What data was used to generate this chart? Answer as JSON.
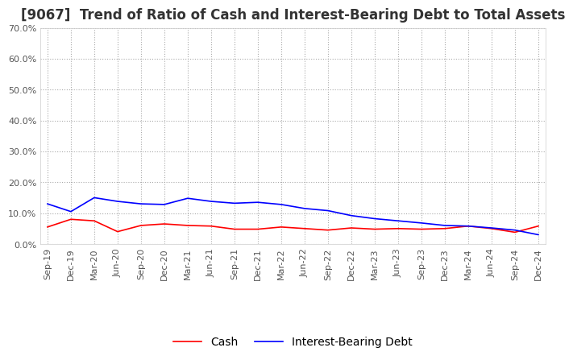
{
  "title": "[9067]  Trend of Ratio of Cash and Interest-Bearing Debt to Total Assets",
  "ylim": [
    0,
    0.7
  ],
  "yticks": [
    0.0,
    0.1,
    0.2,
    0.3,
    0.4,
    0.5,
    0.6,
    0.7
  ],
  "ytick_labels": [
    "0.0%",
    "10.0%",
    "20.0%",
    "30.0%",
    "40.0%",
    "50.0%",
    "60.0%",
    "70.0%"
  ],
  "x_labels": [
    "Sep-19",
    "Dec-19",
    "Mar-20",
    "Jun-20",
    "Sep-20",
    "Dec-20",
    "Mar-21",
    "Jun-21",
    "Sep-21",
    "Dec-21",
    "Mar-22",
    "Jun-22",
    "Sep-22",
    "Dec-22",
    "Mar-23",
    "Jun-23",
    "Sep-23",
    "Dec-23",
    "Mar-24",
    "Jun-24",
    "Sep-24",
    "Dec-24"
  ],
  "cash": [
    0.055,
    0.08,
    0.075,
    0.04,
    0.06,
    0.065,
    0.06,
    0.058,
    0.048,
    0.048,
    0.055,
    0.05,
    0.045,
    0.052,
    0.048,
    0.05,
    0.048,
    0.05,
    0.058,
    0.05,
    0.038,
    0.058
  ],
  "interest_bearing_debt": [
    0.13,
    0.105,
    0.15,
    0.138,
    0.13,
    0.128,
    0.148,
    0.138,
    0.132,
    0.135,
    0.128,
    0.115,
    0.108,
    0.092,
    0.082,
    0.075,
    0.068,
    0.06,
    0.058,
    0.052,
    0.045,
    0.03
  ],
  "cash_color": "#ff0000",
  "debt_color": "#0000ff",
  "background_color": "#ffffff",
  "grid_color": "#aaaaaa",
  "title_fontsize": 12,
  "tick_fontsize": 8,
  "legend_fontsize": 10
}
